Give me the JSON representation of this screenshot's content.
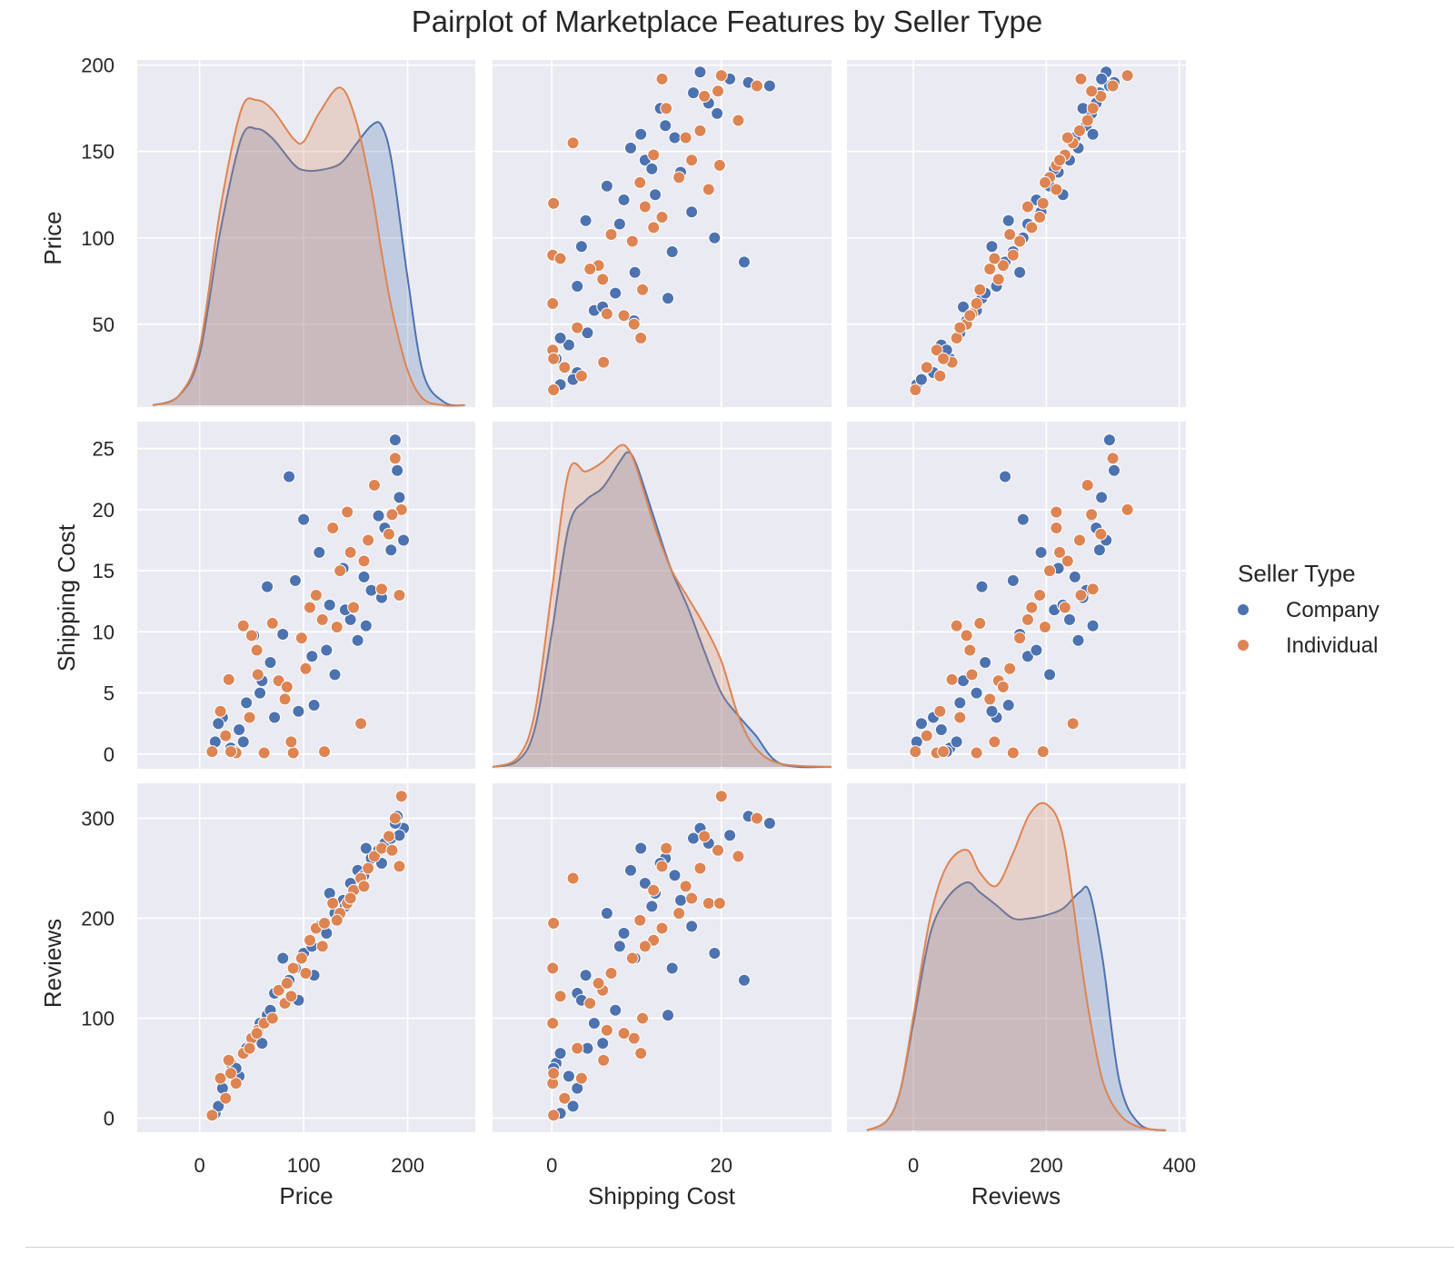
{
  "chart_data": {
    "type": "scatter",
    "subtype": "pairplot",
    "title": "Pairplot of Marketplace Features by Seller Type",
    "variables": [
      "Price",
      "Shipping Cost",
      "Reviews"
    ],
    "hue": "Seller Type",
    "legend": {
      "title": "Seller Type",
      "placement": "right",
      "entries": [
        {
          "name": "Company",
          "color": "#4c72b0"
        },
        {
          "name": "Individual",
          "color": "#dd8452"
        }
      ]
    },
    "axes": {
      "Price": {
        "range": [
          -60,
          265
        ],
        "ticks": [
          0,
          100,
          200
        ],
        "row_range": [
          2,
          203
        ],
        "row_ticks": [
          50,
          100,
          150,
          200
        ]
      },
      "Shipping Cost": {
        "range": [
          -7,
          33
        ],
        "ticks": [
          0,
          20
        ],
        "row_range": [
          -1.2,
          27.2
        ],
        "row_ticks": [
          0,
          5,
          10,
          15,
          20,
          25
        ]
      },
      "Reviews": {
        "range": [
          -100,
          410
        ],
        "ticks": [
          0,
          200,
          400
        ],
        "row_range": [
          -14,
          335
        ],
        "row_ticks": [
          0,
          100,
          200,
          300
        ]
      }
    },
    "grid": true,
    "style": {
      "background": "#eaeaf2",
      "gridline": "#ffffff",
      "text": "#262626"
    },
    "kde": {
      "Price": {
        "x": [
          -45,
          -20,
          0,
          20,
          40,
          55,
          70,
          90,
          100,
          115,
          135,
          150,
          165,
          175,
          185,
          200,
          215,
          235,
          255
        ],
        "series": [
          {
            "name": "Company",
            "density": [
              0,
              0.03,
              0.16,
              0.55,
              0.84,
              0.87,
              0.84,
              0.76,
              0.74,
              0.74,
              0.76,
              0.82,
              0.88,
              0.88,
              0.76,
              0.4,
              0.1,
              0.01,
              0
            ]
          },
          {
            "name": "Individual",
            "density": [
              0,
              0.03,
              0.18,
              0.62,
              0.93,
              0.96,
              0.93,
              0.84,
              0.83,
              0.92,
              1.0,
              0.9,
              0.68,
              0.48,
              0.3,
              0.11,
              0.02,
              0,
              0
            ]
          }
        ]
      },
      "Shipping Cost": {
        "x": [
          -7,
          -4,
          -2,
          0,
          2,
          4,
          6,
          8,
          9,
          10,
          12,
          14,
          16,
          18,
          20,
          22,
          24,
          27,
          33
        ],
        "series": [
          {
            "name": "Company",
            "density": [
              0,
              0.02,
              0.12,
              0.42,
              0.75,
              0.83,
              0.87,
              0.95,
              0.98,
              0.94,
              0.78,
              0.62,
              0.5,
              0.36,
              0.23,
              0.16,
              0.1,
              0.01,
              0
            ]
          },
          {
            "name": "Individual",
            "density": [
              0,
              0.03,
              0.17,
              0.55,
              0.92,
              0.92,
              0.95,
              1.0,
              0.99,
              0.93,
              0.76,
              0.62,
              0.53,
              0.44,
              0.33,
              0.16,
              0.06,
              0.01,
              0
            ]
          }
        ]
      },
      "Reviews": {
        "x": [
          -70,
          -40,
          -20,
          0,
          25,
          50,
          80,
          100,
          125,
          150,
          175,
          200,
          225,
          250,
          265,
          285,
          310,
          340,
          380
        ],
        "series": [
          {
            "name": "Company",
            "density": [
              0,
              0.03,
              0.12,
              0.33,
              0.6,
              0.71,
              0.76,
              0.73,
              0.69,
              0.65,
              0.65,
              0.66,
              0.68,
              0.73,
              0.73,
              0.52,
              0.15,
              0.02,
              0
            ]
          },
          {
            "name": "Individual",
            "density": [
              0,
              0.03,
              0.12,
              0.35,
              0.65,
              0.81,
              0.86,
              0.79,
              0.75,
              0.85,
              0.97,
              1.0,
              0.9,
              0.55,
              0.35,
              0.15,
              0.05,
              0.01,
              0
            ]
          }
        ]
      }
    },
    "points": {
      "Company": {
        "price": [
          15,
          22,
          30,
          38,
          45,
          52,
          58,
          65,
          72,
          80,
          86,
          92,
          100,
          108,
          115,
          122,
          130,
          138,
          145,
          152,
          158,
          165,
          172,
          178,
          184,
          190,
          196,
          18,
          42,
          68,
          95,
          140,
          175,
          188,
          60,
          125,
          160,
          35,
          110,
          192
        ],
        "shipping": [
          1,
          3,
          0.5,
          2,
          4.2,
          9.7,
          5,
          13.7,
          3,
          9.8,
          22.7,
          14.2,
          19.2,
          8,
          16.5,
          8.5,
          6.5,
          15.2,
          11,
          9.3,
          14.5,
          13.4,
          19.5,
          18.5,
          16.7,
          23.2,
          17.5,
          2.5,
          1,
          7.5,
          3.5,
          11.8,
          12.8,
          25.7,
          6,
          12.2,
          10.5,
          0.2,
          4,
          21
        ],
        "reviews": [
          5,
          30,
          55,
          42,
          70,
          80,
          95,
          103,
          125,
          160,
          138,
          150,
          165,
          172,
          192,
          185,
          205,
          218,
          235,
          248,
          243,
          260,
          268,
          275,
          280,
          302,
          290,
          12,
          65,
          108,
          118,
          212,
          255,
          295,
          75,
          225,
          270,
          50,
          143,
          283
        ]
      },
      "Individual": {
        "price": [
          12,
          20,
          28,
          35,
          42,
          50,
          56,
          62,
          70,
          76,
          84,
          90,
          98,
          106,
          112,
          120,
          128,
          135,
          142,
          148,
          155,
          162,
          168,
          175,
          182,
          188,
          194,
          25,
          48,
          82,
          102,
          132,
          158,
          185,
          55,
          118,
          145,
          192,
          30,
          88
        ],
        "shipping": [
          0.2,
          3.5,
          6.1,
          0.1,
          10.5,
          9.7,
          6.5,
          0.1,
          10.7,
          6,
          5.5,
          0.1,
          9.5,
          12,
          13,
          0.2,
          18.5,
          15,
          19.8,
          12,
          2.5,
          17.5,
          22,
          13.5,
          18,
          24.2,
          20,
          1.5,
          3,
          4.5,
          7,
          10.4,
          15.8,
          19.6,
          8.5,
          11,
          16.5,
          13,
          0.2,
          1
        ],
        "reviews": [
          3,
          40,
          58,
          35,
          65,
          80,
          88,
          95,
          100,
          128,
          135,
          150,
          160,
          178,
          190,
          195,
          215,
          205,
          215,
          228,
          240,
          250,
          262,
          270,
          282,
          300,
          322,
          20,
          70,
          115,
          145,
          198,
          232,
          268,
          85,
          172,
          220,
          252,
          45,
          122
        ]
      }
    }
  },
  "labels": {
    "title": "Pairplot of Marketplace Features by Seller Type",
    "legend_title": "Seller Type",
    "legend_company": "Company",
    "legend_individual": "Individual",
    "var_price": "Price",
    "var_shipping": "Shipping Cost",
    "var_reviews": "Reviews"
  }
}
